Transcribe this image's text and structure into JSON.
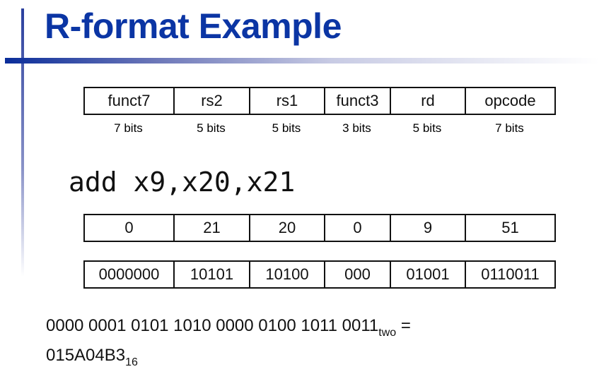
{
  "title": "R-format Example",
  "fields": [
    "funct7",
    "rs2",
    "rs1",
    "funct3",
    "rd",
    "opcode"
  ],
  "widths": [
    "7 bits",
    "5 bits",
    "5 bits",
    "3 bits",
    "5 bits",
    "7 bits"
  ],
  "instruction": "add x9,x20,x21",
  "decimal": [
    "0",
    "21",
    "20",
    "0",
    "9",
    "51"
  ],
  "binary": [
    "0000000",
    "10101",
    "10100",
    "000",
    "01001",
    "0110011"
  ],
  "result": {
    "binary": "0000 0001 0101 1010 0000 0100 1011 0011",
    "binary_sub": "two",
    "eq": " =",
    "hex": "015A04B3",
    "hex_sub": "16"
  },
  "colors": {
    "title": "#0b35a4"
  }
}
